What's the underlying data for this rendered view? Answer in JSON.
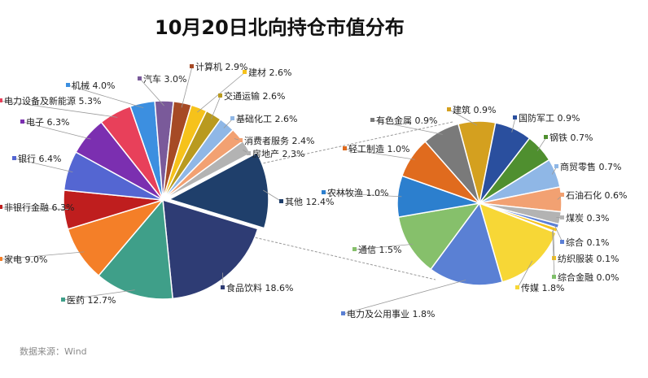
{
  "title": "10月20日北向持仓市值分布",
  "source": "数据来源：Wind",
  "chart_data": [
    {
      "type": "pie",
      "name": "",
      "slices": [
        {
          "label": "其他",
          "value": 12.4,
          "color": "#1f3f6b"
        },
        {
          "label": "食品饮料",
          "value": 18.6,
          "color": "#2e3c74"
        },
        {
          "label": "医药",
          "value": 12.7,
          "color": "#3f9f89"
        },
        {
          "label": "家电",
          "value": 9.0,
          "color": "#f47f28"
        },
        {
          "label": "非银行金融",
          "value": 6.3,
          "color": "#bf1e1e"
        },
        {
          "label": "银行",
          "value": 6.4,
          "color": "#5466d2"
        },
        {
          "label": "电子",
          "value": 6.3,
          "color": "#7b2fb0"
        },
        {
          "label": "电力设备及新能源",
          "value": 5.3,
          "color": "#e8405a"
        },
        {
          "label": "机械",
          "value": 4.0,
          "color": "#3c8fe0"
        },
        {
          "label": "汽车",
          "value": 3.0,
          "color": "#7a5a9a"
        },
        {
          "label": "计算机",
          "value": 2.9,
          "color": "#a64a25"
        },
        {
          "label": "建材",
          "value": 2.6,
          "color": "#f6c21b"
        },
        {
          "label": "交通运输",
          "value": 2.6,
          "color": "#b99a1f"
        },
        {
          "label": "基础化工",
          "value": 2.6,
          "color": "#8fb7e6"
        },
        {
          "label": "消费者服务",
          "value": 2.4,
          "color": "#f2a172"
        },
        {
          "label": "房地产",
          "value": 2.3,
          "color": "#b3b3b3"
        }
      ],
      "labels_text": [
        {
          "text": "其他 12.4%",
          "color": "#1f3f6b"
        },
        {
          "text": "食品饮料 18.6%",
          "color": "#2e3c74"
        },
        {
          "text": "医药 12.7%",
          "color": "#3f9f89"
        },
        {
          "text": "家电 9.0%",
          "color": "#f47f28"
        },
        {
          "text": "非银行金融 6.3%",
          "color": "#bf1e1e"
        },
        {
          "text": "银行 6.4%",
          "color": "#5466d2"
        },
        {
          "text": "电子 6.3%",
          "color": "#7b2fb0"
        },
        {
          "text": "电力设备及新能源 5.3%",
          "color": "#e8405a"
        },
        {
          "text": "机械 4.0%",
          "color": "#3c8fe0"
        },
        {
          "text": "汽车 3.0%",
          "color": "#7a5a9a"
        },
        {
          "text": "计算机 2.9%",
          "color": "#a64a25"
        },
        {
          "text": "建材 2.6%",
          "color": "#f6c21b"
        },
        {
          "text": "交通运输 2.6%",
          "color": "#b99a1f"
        },
        {
          "text": "基础化工 2.6%",
          "color": "#8fb7e6"
        },
        {
          "text": "消费者服务 2.4%",
          "color": "#f2a172"
        },
        {
          "text": "房地产 2.3%",
          "color": "#b3b3b3"
        }
      ]
    },
    {
      "type": "pie",
      "name": "",
      "slices": [
        {
          "label": "建筑",
          "value": 0.9,
          "color": "#d4a01f"
        },
        {
          "label": "国防军工",
          "value": 0.9,
          "color": "#2a4f9e"
        },
        {
          "label": "钢铁",
          "value": 0.7,
          "color": "#4f8f2f"
        },
        {
          "label": "商贸零售",
          "value": 0.7,
          "color": "#8fb7e6"
        },
        {
          "label": "石油石化",
          "value": 0.6,
          "color": "#f2a172"
        },
        {
          "label": "煤炭",
          "value": 0.3,
          "color": "#b3b3b3"
        },
        {
          "label": "综合",
          "value": 0.1,
          "color": "#5b7fd6"
        },
        {
          "label": "纺织服装",
          "value": 0.1,
          "color": "#f6c21b"
        },
        {
          "label": "综合金融",
          "value": 0.0,
          "color": "#7fbf6a"
        },
        {
          "label": "传媒",
          "value": 1.8,
          "color": "#f7d736"
        },
        {
          "label": "电力及公用事业",
          "value": 1.8,
          "color": "#5a80d4"
        },
        {
          "label": "通信",
          "value": 1.5,
          "color": "#86c06b"
        },
        {
          "label": "农林牧渔",
          "value": 1.0,
          "color": "#2c7fce"
        },
        {
          "label": "轻工制造",
          "value": 1.0,
          "color": "#e06b1e"
        },
        {
          "label": "有色金属",
          "value": 0.9,
          "color": "#7a7a7a"
        }
      ],
      "labels_text": [
        {
          "text": "建筑 0.9%",
          "color": "#d4a01f"
        },
        {
          "text": "国防军工 0.9%",
          "color": "#2a4f9e"
        },
        {
          "text": "钢铁 0.7%",
          "color": "#4f8f2f"
        },
        {
          "text": "商贸零售 0.7%",
          "color": "#8fb7e6"
        },
        {
          "text": "石油石化 0.6%",
          "color": "#f2a172"
        },
        {
          "text": "煤炭 0.3%",
          "color": "#b3b3b3"
        },
        {
          "text": "综合 0.1%",
          "color": "#5b7fd6"
        },
        {
          "text": "纺织服装 0.1%",
          "color": "#f6c21b"
        },
        {
          "text": "综合金融 0.0%",
          "color": "#7fbf6a"
        },
        {
          "text": "传媒 1.8%",
          "color": "#f7d736"
        },
        {
          "text": "电力及公用事业 1.8%",
          "color": "#5a80d4"
        },
        {
          "text": "通信 1.5%",
          "color": "#86c06b"
        },
        {
          "text": "农林牧渔 1.0%",
          "color": "#2c7fce"
        },
        {
          "text": "轻工制造 1.0%",
          "color": "#e06b1e"
        },
        {
          "text": "有色金属 0.9%",
          "color": "#7a7a7a"
        }
      ]
    }
  ]
}
